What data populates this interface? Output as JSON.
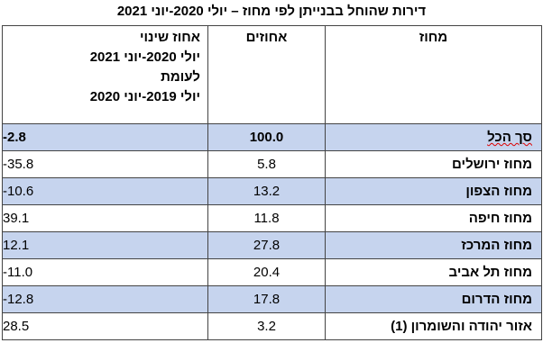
{
  "title": "דירות שהוחל בבנייתן לפי מחוז – יולי 2020-יוני 2021",
  "table": {
    "header": [
      "מחוז",
      "אחוזים",
      [
        "אחוז שינוי",
        "יולי 2020-יוני 2021",
        "לעומת",
        "יולי 2019-יוני 2020"
      ]
    ],
    "rows": [
      [
        "סך הכל",
        "100.0",
        "-2.8"
      ],
      [
        "מחוז ירושלים",
        "5.8",
        "-35.8"
      ],
      [
        "מחוז הצפון",
        "13.2",
        "-10.6"
      ],
      [
        "מחוז חיפה",
        "11.8",
        "39.1"
      ],
      [
        "מחוז המרכז",
        "27.8",
        "12.1"
      ],
      [
        "מחוז תל אביב",
        "20.4",
        "-11.0"
      ],
      [
        "מחוז הדרום",
        "17.8",
        "-12.8"
      ],
      [
        "אזור יהודה והשומרון (1)",
        "3.2",
        "28.5"
      ]
    ]
  }
}
